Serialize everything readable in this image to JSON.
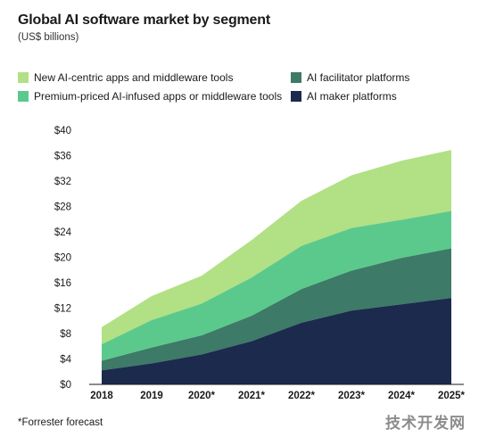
{
  "chart_data": {
    "type": "area",
    "stacked": true,
    "title": "Global AI software market by segment",
    "subtitle": "(US$ billions)",
    "categories": [
      "2018",
      "2019",
      "2020*",
      "2021*",
      "2022*",
      "2023*",
      "2024*",
      "2025*"
    ],
    "ylim": [
      0,
      40
    ],
    "yticks": [
      "$0",
      "$4",
      "$8",
      "$12",
      "$16",
      "$20",
      "$24",
      "$28",
      "$32",
      "$36",
      "$40"
    ],
    "ytick_values": [
      0,
      4,
      8,
      12,
      16,
      20,
      24,
      28,
      32,
      36,
      40
    ],
    "grid": false,
    "legend_position": "top",
    "series": [
      {
        "name": "AI maker platforms",
        "color": "#1c2a4e",
        "values": [
          2.2,
          3.3,
          4.7,
          6.8,
          9.7,
          11.6,
          12.6,
          13.6
        ]
      },
      {
        "name": "AI facilitator platforms",
        "color": "#3d7a67",
        "values": [
          1.5,
          2.5,
          3.0,
          4.0,
          5.3,
          6.3,
          7.3,
          7.8
        ]
      },
      {
        "name": "Premium-priced AI-infused apps or middleware tools",
        "color": "#5cc98c",
        "values": [
          2.6,
          4.3,
          5.0,
          6.0,
          6.8,
          6.7,
          6.0,
          5.9
        ]
      },
      {
        "name": "New AI-centric apps and middleware tools",
        "color": "#b2e084",
        "values": [
          2.7,
          3.8,
          4.4,
          5.9,
          7.1,
          8.3,
          9.3,
          9.6
        ]
      }
    ],
    "footnote": "*Forrester forecast"
  },
  "legend": [
    {
      "label": "New AI-centric apps and middleware tools",
      "color": "#b2e084"
    },
    {
      "label": "AI facilitator platforms",
      "color": "#3d7a67"
    },
    {
      "label": "Premium-priced AI-infused apps or middleware tools",
      "color": "#5cc98c"
    },
    {
      "label": "AI maker platforms",
      "color": "#1c2a4e"
    }
  ],
  "watermark": "技术开发网"
}
